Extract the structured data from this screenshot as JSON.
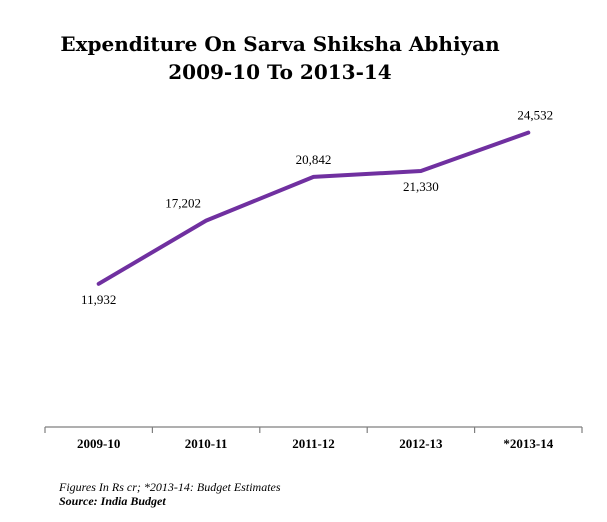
{
  "title_line1": "Expenditure On Sarva Shiksha Abhiyan",
  "title_line2": "2009-10 To 2013-14",
  "footnote": "Figures In Rs cr; *2013-14: Budget Estimates",
  "source": "Source: India Budget",
  "colors": {
    "line": "#7030a0",
    "axis": "#7f7f7f"
  },
  "chart_data": {
    "type": "line",
    "categories": [
      "2009-10",
      "2010-11",
      "2011-12",
      "2012-13",
      "*2013-14"
    ],
    "series": [
      {
        "values": [
          11932,
          17202,
          20842,
          21330,
          24532
        ]
      }
    ],
    "data_labels": [
      "11,932",
      "17,202",
      "20,842",
      "21,330",
      "24,532"
    ],
    "ylim": [
      0,
      30000
    ],
    "grid": false,
    "legend": "none"
  }
}
